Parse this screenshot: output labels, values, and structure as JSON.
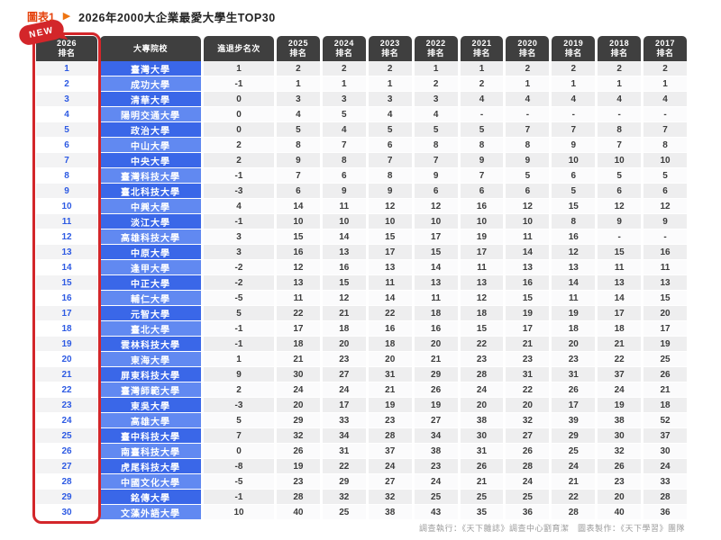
{
  "page": {
    "figure_label": "圖表1",
    "title": "2026年2000大企業最愛大學生TOP30",
    "new_badge": "NEW",
    "footer": "調查執行：《天下雜誌》調查中心劉育潔　圖表製作：《天下學習》團隊"
  },
  "colors": {
    "accent_red": "#d3262a",
    "header_dark": "#3f3f3f",
    "row_blue_odd": "#3a67e8",
    "row_blue_even": "#6189f1",
    "rank_blue": "#2d5ae3",
    "title_orange": "#e5430e"
  },
  "chart_data": {
    "type": "table",
    "title": "2026年2000大企業最愛大學生TOP30",
    "columns": [
      {
        "key": "rank2026",
        "label": "2026",
        "sublabel": "排名"
      },
      {
        "key": "school",
        "label": "大專院校"
      },
      {
        "key": "change",
        "label": "進退步名次"
      },
      {
        "key": "y2025",
        "label": "2025",
        "sublabel": "排名"
      },
      {
        "key": "y2024",
        "label": "2024",
        "sublabel": "排名"
      },
      {
        "key": "y2023",
        "label": "2023",
        "sublabel": "排名"
      },
      {
        "key": "y2022",
        "label": "2022",
        "sublabel": "排名"
      },
      {
        "key": "y2021",
        "label": "2021",
        "sublabel": "排名"
      },
      {
        "key": "y2020",
        "label": "2020",
        "sublabel": "排名"
      },
      {
        "key": "y2019",
        "label": "2019",
        "sublabel": "排名"
      },
      {
        "key": "y2018",
        "label": "2018",
        "sublabel": "排名"
      },
      {
        "key": "y2017",
        "label": "2017",
        "sublabel": "排名"
      }
    ],
    "rows": [
      {
        "rank": "1",
        "school": "臺灣大學",
        "change": "1",
        "years": [
          "2",
          "2",
          "2",
          "1",
          "1",
          "2",
          "2",
          "2",
          "2"
        ]
      },
      {
        "rank": "2",
        "school": "成功大學",
        "change": "-1",
        "years": [
          "1",
          "1",
          "1",
          "2",
          "2",
          "1",
          "1",
          "1",
          "1"
        ]
      },
      {
        "rank": "3",
        "school": "清華大學",
        "change": "0",
        "years": [
          "3",
          "3",
          "3",
          "3",
          "4",
          "4",
          "4",
          "4",
          "4"
        ]
      },
      {
        "rank": "4",
        "school": "陽明交通大學",
        "change": "0",
        "years": [
          "4",
          "5",
          "4",
          "4",
          "-",
          "-",
          "-",
          "-",
          "-"
        ]
      },
      {
        "rank": "5",
        "school": "政治大學",
        "change": "0",
        "years": [
          "5",
          "4",
          "5",
          "5",
          "5",
          "7",
          "7",
          "8",
          "7"
        ]
      },
      {
        "rank": "6",
        "school": "中山大學",
        "change": "2",
        "years": [
          "8",
          "7",
          "6",
          "8",
          "8",
          "8",
          "9",
          "7",
          "8"
        ]
      },
      {
        "rank": "7",
        "school": "中央大學",
        "change": "2",
        "years": [
          "9",
          "8",
          "7",
          "7",
          "9",
          "9",
          "10",
          "10",
          "10"
        ]
      },
      {
        "rank": "8",
        "school": "臺灣科技大學",
        "change": "-1",
        "years": [
          "7",
          "6",
          "8",
          "9",
          "7",
          "5",
          "6",
          "5",
          "5"
        ]
      },
      {
        "rank": "9",
        "school": "臺北科技大學",
        "change": "-3",
        "years": [
          "6",
          "9",
          "9",
          "6",
          "6",
          "6",
          "5",
          "6",
          "6"
        ]
      },
      {
        "rank": "10",
        "school": "中興大學",
        "change": "4",
        "years": [
          "14",
          "11",
          "12",
          "12",
          "16",
          "12",
          "15",
          "12",
          "12"
        ]
      },
      {
        "rank": "11",
        "school": "淡江大學",
        "change": "-1",
        "years": [
          "10",
          "10",
          "10",
          "10",
          "10",
          "10",
          "8",
          "9",
          "9"
        ]
      },
      {
        "rank": "12",
        "school": "高雄科技大學",
        "change": "3",
        "years": [
          "15",
          "14",
          "15",
          "17",
          "19",
          "11",
          "16",
          "-",
          "-"
        ]
      },
      {
        "rank": "13",
        "school": "中原大學",
        "change": "3",
        "years": [
          "16",
          "13",
          "17",
          "15",
          "17",
          "14",
          "12",
          "15",
          "16"
        ]
      },
      {
        "rank": "14",
        "school": "逢甲大學",
        "change": "-2",
        "years": [
          "12",
          "16",
          "13",
          "14",
          "11",
          "13",
          "13",
          "11",
          "11"
        ]
      },
      {
        "rank": "15",
        "school": "中正大學",
        "change": "-2",
        "years": [
          "13",
          "15",
          "11",
          "13",
          "13",
          "16",
          "14",
          "13",
          "13"
        ]
      },
      {
        "rank": "16",
        "school": "輔仁大學",
        "change": "-5",
        "years": [
          "11",
          "12",
          "14",
          "11",
          "12",
          "15",
          "11",
          "14",
          "15"
        ]
      },
      {
        "rank": "17",
        "school": "元智大學",
        "change": "5",
        "years": [
          "22",
          "21",
          "22",
          "18",
          "18",
          "19",
          "19",
          "17",
          "20"
        ]
      },
      {
        "rank": "18",
        "school": "臺北大學",
        "change": "-1",
        "years": [
          "17",
          "18",
          "16",
          "16",
          "15",
          "17",
          "18",
          "18",
          "17"
        ]
      },
      {
        "rank": "19",
        "school": "雲林科技大學",
        "change": "-1",
        "years": [
          "18",
          "20",
          "18",
          "20",
          "22",
          "21",
          "20",
          "21",
          "19"
        ]
      },
      {
        "rank": "20",
        "school": "東海大學",
        "change": "1",
        "years": [
          "21",
          "23",
          "20",
          "21",
          "23",
          "23",
          "23",
          "22",
          "25"
        ]
      },
      {
        "rank": "21",
        "school": "屏東科技大學",
        "change": "9",
        "years": [
          "30",
          "27",
          "31",
          "29",
          "28",
          "31",
          "31",
          "37",
          "26"
        ]
      },
      {
        "rank": "22",
        "school": "臺灣師範大學",
        "change": "2",
        "years": [
          "24",
          "24",
          "21",
          "26",
          "24",
          "22",
          "26",
          "24",
          "21"
        ]
      },
      {
        "rank": "23",
        "school": "東吳大學",
        "change": "-3",
        "years": [
          "20",
          "17",
          "19",
          "19",
          "20",
          "20",
          "17",
          "19",
          "18"
        ]
      },
      {
        "rank": "24",
        "school": "高雄大學",
        "change": "5",
        "years": [
          "29",
          "33",
          "23",
          "27",
          "38",
          "32",
          "39",
          "38",
          "52"
        ]
      },
      {
        "rank": "25",
        "school": "臺中科技大學",
        "change": "7",
        "years": [
          "32",
          "34",
          "28",
          "34",
          "30",
          "27",
          "29",
          "30",
          "37"
        ]
      },
      {
        "rank": "26",
        "school": "南臺科技大學",
        "change": "0",
        "years": [
          "26",
          "31",
          "37",
          "38",
          "31",
          "26",
          "25",
          "32",
          "30"
        ]
      },
      {
        "rank": "27",
        "school": "虎尾科技大學",
        "change": "-8",
        "years": [
          "19",
          "22",
          "24",
          "23",
          "26",
          "28",
          "24",
          "26",
          "24"
        ]
      },
      {
        "rank": "28",
        "school": "中國文化大學",
        "change": "-5",
        "years": [
          "23",
          "29",
          "27",
          "24",
          "21",
          "24",
          "21",
          "23",
          "33"
        ]
      },
      {
        "rank": "29",
        "school": "銘傳大學",
        "change": "-1",
        "years": [
          "28",
          "32",
          "32",
          "25",
          "25",
          "25",
          "22",
          "20",
          "28"
        ]
      },
      {
        "rank": "30",
        "school": "文藻外語大學",
        "change": "10",
        "years": [
          "40",
          "25",
          "38",
          "43",
          "35",
          "36",
          "28",
          "40",
          "36"
        ]
      }
    ]
  }
}
